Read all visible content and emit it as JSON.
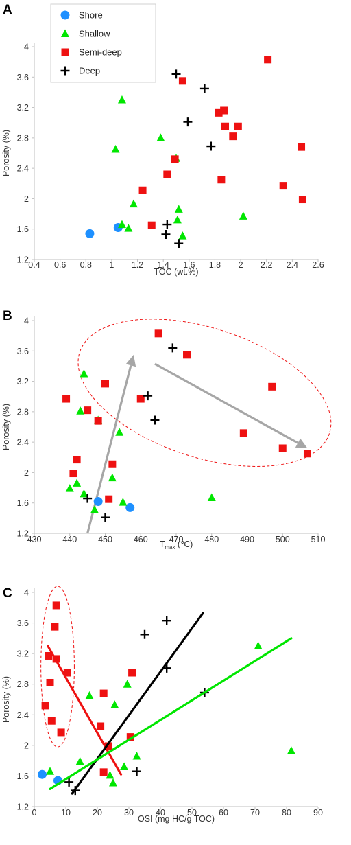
{
  "colors": {
    "shore": "#1e90ff",
    "shallow": "#00e600",
    "semi_deep": "#ee1111",
    "deep": "#000000"
  },
  "legend": {
    "items": [
      {
        "label": "Shore",
        "marker": "circle"
      },
      {
        "label": "Shallow",
        "marker": "triangle"
      },
      {
        "label": "Semi-deep",
        "marker": "square"
      },
      {
        "label": "Deep",
        "marker": "cross"
      }
    ]
  },
  "chart_data": [
    {
      "panel": "A",
      "type": "scatter",
      "xlabel": "TOC (wt.%)",
      "ylabel": "Porosity (%)",
      "xlim": [
        0.4,
        2.6
      ],
      "ylim": [
        1.2,
        4.0
      ],
      "xticks": [
        "0.4",
        "0.6",
        "0.8",
        "1",
        "1.2",
        "1.4",
        "1.6",
        "1.8",
        "2",
        "2.2",
        "2.4",
        "2.6"
      ],
      "yticks": [
        "1.2",
        "1.6",
        "2",
        "2.4",
        "2.8",
        "3.2",
        "3.6",
        "4"
      ],
      "legend": "top-left",
      "series": [
        {
          "name": "Shore",
          "points": [
            [
              0.83,
              1.54
            ],
            [
              1.05,
              1.62
            ]
          ]
        },
        {
          "name": "Shallow",
          "points": [
            [
              1.08,
              3.3
            ],
            [
              1.03,
              2.65
            ],
            [
              1.38,
              2.8
            ],
            [
              1.5,
              2.53
            ],
            [
              1.17,
              1.93
            ],
            [
              1.08,
              1.66
            ],
            [
              1.13,
              1.61
            ],
            [
              1.52,
              1.86
            ],
            [
              1.51,
              1.72
            ],
            [
              1.55,
              1.51
            ],
            [
              2.02,
              1.77
            ]
          ]
        },
        {
          "name": "Semi-deep",
          "points": [
            [
              2.21,
              3.83
            ],
            [
              1.55,
              3.55
            ],
            [
              1.87,
              3.16
            ],
            [
              1.83,
              3.13
            ],
            [
              1.88,
              2.95
            ],
            [
              1.98,
              2.95
            ],
            [
              1.94,
              2.82
            ],
            [
              2.47,
              2.68
            ],
            [
              1.49,
              2.52
            ],
            [
              1.43,
              2.32
            ],
            [
              1.85,
              2.25
            ],
            [
              1.24,
              2.11
            ],
            [
              2.33,
              2.17
            ],
            [
              2.48,
              1.99
            ],
            [
              1.31,
              1.65
            ]
          ]
        },
        {
          "name": "Deep",
          "points": [
            [
              1.5,
              3.64
            ],
            [
              1.72,
              3.45
            ],
            [
              1.59,
              3.01
            ],
            [
              1.77,
              2.69
            ],
            [
              1.43,
              1.66
            ],
            [
              1.42,
              1.53
            ],
            [
              1.52,
              1.41
            ]
          ]
        }
      ]
    },
    {
      "panel": "B",
      "type": "scatter",
      "xlabel": "Tmax (℃)",
      "ylabel": "Porosity (%)",
      "xlim": [
        430,
        510
      ],
      "ylim": [
        1.2,
        4.0
      ],
      "xticks": [
        "430",
        "440",
        "450",
        "460",
        "470",
        "480",
        "490",
        "500",
        "510"
      ],
      "yticks": [
        "1.2",
        "1.6",
        "2",
        "2.4",
        "2.8",
        "3.2",
        "3.6",
        "4"
      ],
      "annotations": [
        {
          "type": "arrow",
          "from": [
            445,
            1.2
          ],
          "to": [
            458,
            3.55
          ]
        },
        {
          "type": "arrow",
          "from": [
            464,
            3.43
          ],
          "to": [
            507,
            2.32
          ]
        },
        {
          "type": "dashed-ellipse",
          "center": [
            478,
            3.05
          ],
          "radii": [
            37,
            0.85
          ],
          "rotation_deg": 18
        }
      ],
      "series": [
        {
          "name": "Shore",
          "points": [
            [
              448,
              1.62
            ],
            [
              457,
              1.54
            ]
          ]
        },
        {
          "name": "Shallow",
          "points": [
            [
              444,
              3.3
            ],
            [
              443,
              2.81
            ],
            [
              448,
              2.69
            ],
            [
              454,
              2.53
            ],
            [
              452,
              1.93
            ],
            [
              442,
              1.86
            ],
            [
              440,
              1.79
            ],
            [
              444,
              1.72
            ],
            [
              455,
              1.61
            ],
            [
              447,
              1.51
            ],
            [
              480,
              1.67
            ]
          ]
        },
        {
          "name": "Semi-deep",
          "points": [
            [
              465,
              3.83
            ],
            [
              473,
              3.55
            ],
            [
              450,
              3.17
            ],
            [
              497,
              3.13
            ],
            [
              439,
              2.97
            ],
            [
              460,
              2.97
            ],
            [
              445,
              2.82
            ],
            [
              448,
              2.68
            ],
            [
              489,
              2.52
            ],
            [
              500,
              2.32
            ],
            [
              507,
              2.25
            ],
            [
              442,
              2.17
            ],
            [
              452,
              2.11
            ],
            [
              441,
              1.99
            ],
            [
              451,
              1.65
            ]
          ]
        },
        {
          "name": "Deep",
          "points": [
            [
              469,
              3.64
            ],
            [
              462,
              3.01
            ],
            [
              464,
              2.69
            ],
            [
              445,
              1.66
            ],
            [
              450,
              1.41
            ]
          ]
        }
      ]
    },
    {
      "panel": "C",
      "type": "scatter",
      "xlabel": "OSI (mg HC/g TOC)",
      "ylabel": "Porosity (%)",
      "xlim": [
        0,
        90
      ],
      "ylim": [
        1.2,
        4.0
      ],
      "xticks": [
        "0",
        "10",
        "20",
        "30",
        "40",
        "50",
        "60",
        "70",
        "80",
        "90"
      ],
      "yticks": [
        "1.2",
        "1.6",
        "2",
        "2.4",
        "2.8",
        "3.2",
        "3.6",
        "4"
      ],
      "annotations": [
        {
          "type": "trend-line",
          "series": "Semi-deep",
          "from": [
            4.3,
            3.3
          ],
          "to": [
            27.5,
            1.62
          ]
        },
        {
          "type": "trend-line",
          "series": "Deep",
          "from": [
            12,
            1.37
          ],
          "to": [
            53.5,
            3.73
          ]
        },
        {
          "type": "trend-line",
          "series": "Shallow",
          "from": [
            5,
            1.43
          ],
          "to": [
            81.5,
            3.4
          ]
        },
        {
          "type": "dashed-ellipse",
          "center": [
            7.4,
            3.03
          ],
          "radii": [
            5.3,
            1.05
          ],
          "rotation_deg": 0
        }
      ],
      "series": [
        {
          "name": "Shore",
          "points": [
            [
              2.5,
              1.62
            ],
            [
              7.5,
              1.54
            ]
          ]
        },
        {
          "name": "Shallow",
          "points": [
            [
              71,
              3.3
            ],
            [
              17.5,
              2.65
            ],
            [
              29.5,
              2.8
            ],
            [
              25.5,
              2.53
            ],
            [
              81.5,
              1.93
            ],
            [
              14.5,
              1.79
            ],
            [
              32.5,
              1.86
            ],
            [
              24,
              1.61
            ],
            [
              5,
              1.66
            ],
            [
              25,
              1.51
            ],
            [
              28.5,
              1.72
            ]
          ]
        },
        {
          "name": "Semi-deep",
          "points": [
            [
              7,
              3.83
            ],
            [
              6.5,
              3.55
            ],
            [
              4.5,
              3.17
            ],
            [
              7,
              3.13
            ],
            [
              10.5,
              2.95
            ],
            [
              31,
              2.95
            ],
            [
              5,
              2.82
            ],
            [
              22,
              2.68
            ],
            [
              3.5,
              2.52
            ],
            [
              5.5,
              2.32
            ],
            [
              21,
              2.25
            ],
            [
              8.5,
              2.17
            ],
            [
              30.5,
              2.11
            ],
            [
              23.5,
              1.99
            ],
            [
              22,
              1.65
            ]
          ]
        },
        {
          "name": "Deep",
          "points": [
            [
              35,
              3.45
            ],
            [
              42,
              3.63
            ],
            [
              42,
              3.01
            ],
            [
              54,
              2.69
            ],
            [
              32.5,
              1.66
            ],
            [
              11,
              1.52
            ],
            [
              13,
              1.41
            ]
          ]
        }
      ]
    }
  ]
}
